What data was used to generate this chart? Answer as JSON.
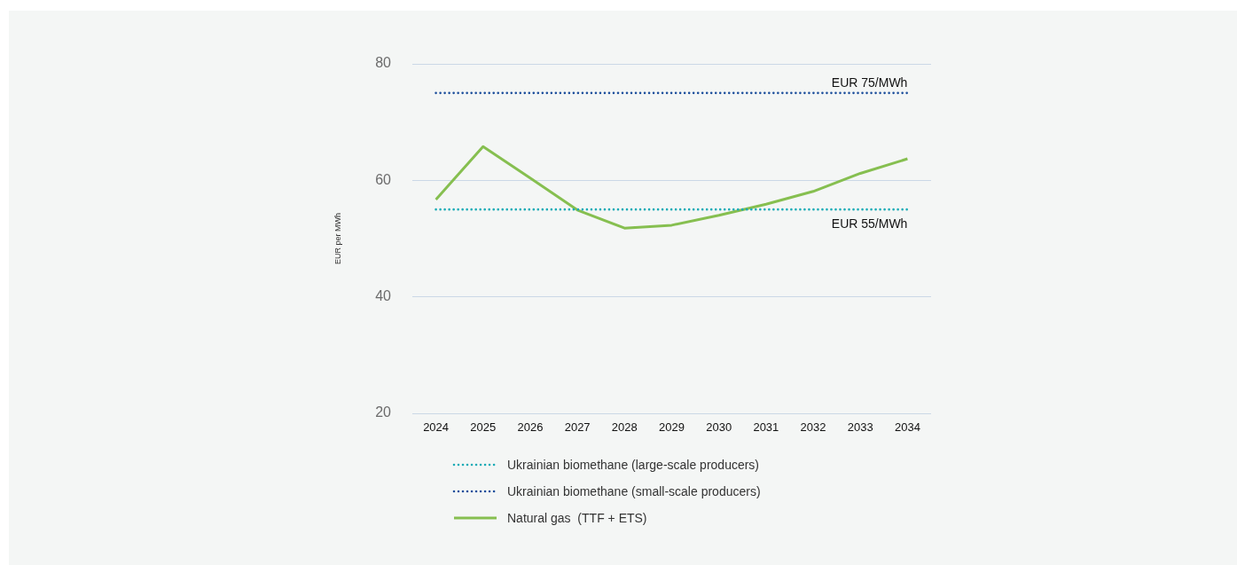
{
  "chart_data": {
    "type": "line",
    "ylabel": "EUR per MWh",
    "categories": [
      "2024",
      "2025",
      "2026",
      "2027",
      "2028",
      "2029",
      "2030",
      "2031",
      "2032",
      "2033",
      "2034"
    ],
    "series": [
      {
        "name": "Ukrainian biomethane (large-scale producers)",
        "color": "#1aabb6",
        "line_style": "dotted",
        "values": [
          55,
          55,
          55,
          55,
          55,
          55,
          55,
          55,
          55,
          55,
          55
        ]
      },
      {
        "name": "Ukrainian biomethane (small-scale producers)",
        "color": "#1d4f9c",
        "line_style": "dotted",
        "values": [
          75,
          75,
          75,
          75,
          75,
          75,
          75,
          75,
          75,
          75,
          75
        ]
      },
      {
        "name": "Natural gas  (TTF + ETS)",
        "color": "#86bf50",
        "line_style": "solid",
        "values": [
          56.7,
          65.8,
          60.4,
          54.9,
          51.8,
          52.3,
          54.0,
          55.9,
          58.1,
          61.2,
          63.7
        ]
      }
    ],
    "ylim": [
      20,
      80
    ],
    "yticks": [
      20,
      40,
      60,
      80
    ],
    "grid": "y",
    "legend": "bottom",
    "marker": "none",
    "annotations": [
      {
        "text": "EUR 75/MWh",
        "x": "2034",
        "y": 75
      },
      {
        "text": "EUR 55/MWh",
        "x": "2034",
        "y": 55
      }
    ]
  }
}
